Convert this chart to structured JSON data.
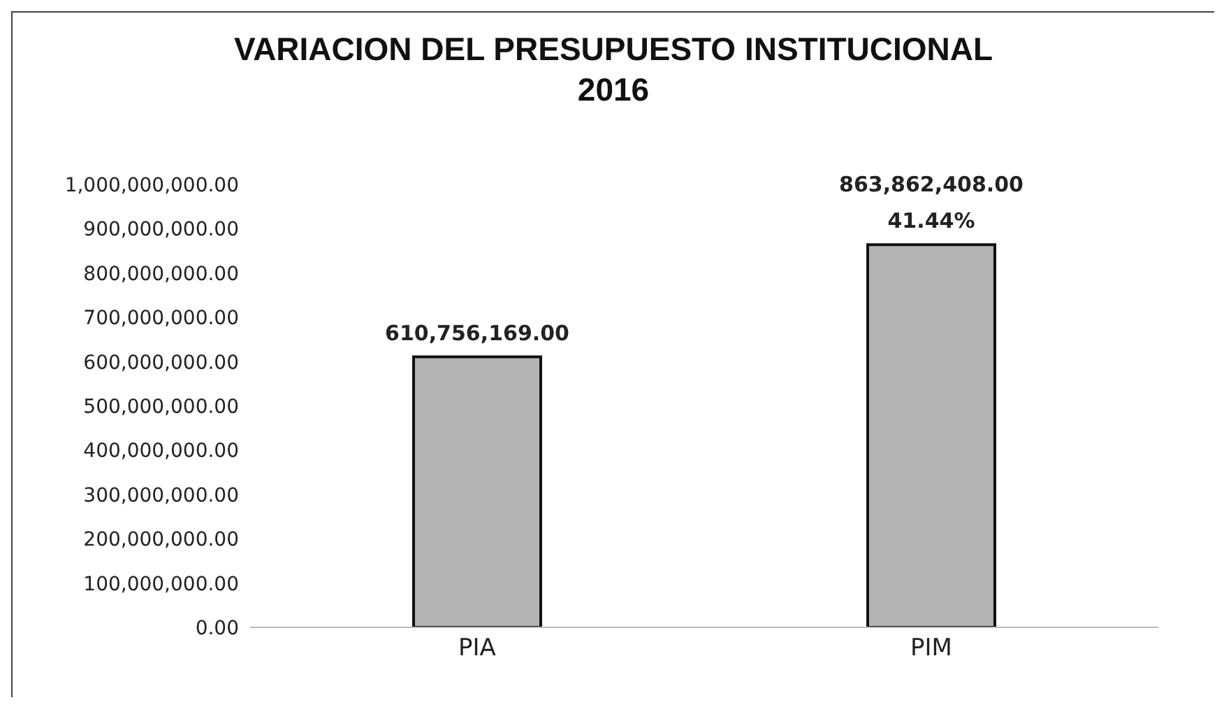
{
  "chart_data": {
    "type": "bar",
    "title": "VARIACION DEL PRESUPUESTO INSTITUCIONAL 2016",
    "categories": [
      "PIA",
      "PIM"
    ],
    "values": [
      610756169,
      863862408
    ],
    "color": "#b3b3b3",
    "value_labels": [
      "610,756,169.00",
      "863,862,408.00"
    ],
    "annotations": [
      {
        "text": "41.44%",
        "x": "PIM",
        "y": 863862408
      }
    ],
    "ylim": [
      0,
      1000000000
    ],
    "yticks": [
      {
        "value": 0,
        "label": "0.00"
      },
      {
        "value": 100000000,
        "label": "100,000,000.00"
      },
      {
        "value": 200000000,
        "label": "200,000,000.00"
      },
      {
        "value": 300000000,
        "label": "300,000,000.00"
      },
      {
        "value": 400000000,
        "label": "400,000,000.00"
      },
      {
        "value": 500000000,
        "label": "500,000,000.00"
      },
      {
        "value": 600000000,
        "label": "600,000,000.00"
      },
      {
        "value": 700000000,
        "label": "700,000,000.00"
      },
      {
        "value": 800000000,
        "label": "800,000,000.00"
      },
      {
        "value": 900000000,
        "label": "900,000,000.00"
      },
      {
        "value": 1000000000,
        "label": "1,000,000,000.00"
      }
    ],
    "grid": false,
    "legend": false
  }
}
